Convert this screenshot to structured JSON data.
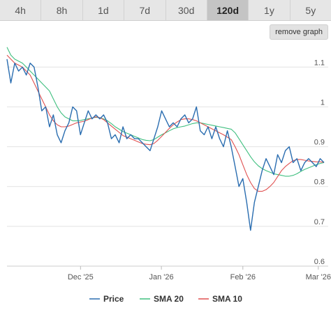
{
  "tabs": [
    {
      "label": "4h"
    },
    {
      "label": "8h"
    },
    {
      "label": "1d"
    },
    {
      "label": "7d"
    },
    {
      "label": "30d"
    },
    {
      "label": "120d",
      "active": true
    },
    {
      "label": "1y"
    },
    {
      "label": "5y"
    }
  ],
  "remove_graph_label": "remove graph",
  "chart_data": {
    "type": "line",
    "x_ticks": [
      "Dec '25",
      "Jan '26",
      "Feb '26",
      "Mar '26"
    ],
    "y_ticks": [
      0.6,
      0.7,
      0.8,
      0.9,
      1,
      1.1
    ],
    "ylim": [
      0.6,
      1.16
    ],
    "grid": "horizontal",
    "legend_position": "bottom",
    "series": [
      {
        "name": "Price",
        "color": "#2a6db0",
        "values": [
          1.12,
          1.06,
          1.11,
          1.09,
          1.1,
          1.08,
          1.11,
          1.1,
          1.05,
          0.99,
          1.0,
          0.95,
          0.98,
          0.93,
          0.91,
          0.94,
          0.96,
          1.0,
          0.99,
          0.93,
          0.96,
          0.99,
          0.97,
          0.98,
          0.97,
          0.98,
          0.96,
          0.92,
          0.93,
          0.91,
          0.95,
          0.92,
          0.93,
          0.92,
          0.92,
          0.91,
          0.9,
          0.89,
          0.92,
          0.95,
          0.99,
          0.97,
          0.95,
          0.96,
          0.95,
          0.97,
          0.98,
          0.96,
          0.97,
          1.0,
          0.94,
          0.93,
          0.95,
          0.92,
          0.95,
          0.92,
          0.9,
          0.94,
          0.9,
          0.85,
          0.8,
          0.82,
          0.76,
          0.69,
          0.76,
          0.8,
          0.84,
          0.87,
          0.85,
          0.83,
          0.88,
          0.86,
          0.89,
          0.9,
          0.86,
          0.87,
          0.84,
          0.86,
          0.87,
          0.86,
          0.85,
          0.87,
          0.86
        ]
      },
      {
        "name": "SMA 20",
        "color": "#3fbf7f",
        "values": [
          1.15,
          1.13,
          1.12,
          1.115,
          1.11,
          1.1,
          1.09,
          1.08,
          1.07,
          1.06,
          1.05,
          1.04,
          1.02,
          1.0,
          0.985,
          0.975,
          0.97,
          0.965,
          0.965,
          0.966,
          0.968,
          0.97,
          0.972,
          0.974,
          0.973,
          0.97,
          0.965,
          0.958,
          0.95,
          0.944,
          0.938,
          0.934,
          0.93,
          0.926,
          0.922,
          0.918,
          0.916,
          0.915,
          0.918,
          0.924,
          0.93,
          0.935,
          0.94,
          0.945,
          0.948,
          0.95,
          0.952,
          0.955,
          0.958,
          0.96,
          0.96,
          0.958,
          0.956,
          0.954,
          0.952,
          0.95,
          0.948,
          0.946,
          0.944,
          0.935,
          0.92,
          0.905,
          0.89,
          0.875,
          0.862,
          0.852,
          0.845,
          0.84,
          0.836,
          0.832,
          0.83,
          0.828,
          0.826,
          0.826,
          0.828,
          0.832,
          0.838,
          0.843,
          0.847,
          0.851,
          0.855,
          0.858,
          0.86
        ]
      },
      {
        "name": "SMA 10",
        "color": "#e05050",
        "values": [
          1.13,
          1.12,
          1.11,
          1.105,
          1.1,
          1.09,
          1.08,
          1.06,
          1.04,
          1.02,
          1.0,
          0.98,
          0.965,
          0.955,
          0.95,
          0.95,
          0.952,
          0.956,
          0.96,
          0.962,
          0.964,
          0.968,
          0.972,
          0.975,
          0.973,
          0.968,
          0.96,
          0.952,
          0.944,
          0.936,
          0.928,
          0.924,
          0.92,
          0.916,
          0.912,
          0.908,
          0.906,
          0.905,
          0.908,
          0.916,
          0.926,
          0.936,
          0.946,
          0.955,
          0.962,
          0.968,
          0.97,
          0.97,
          0.968,
          0.965,
          0.96,
          0.955,
          0.95,
          0.945,
          0.94,
          0.935,
          0.93,
          0.924,
          0.918,
          0.9,
          0.88,
          0.855,
          0.83,
          0.81,
          0.795,
          0.788,
          0.788,
          0.792,
          0.8,
          0.81,
          0.825,
          0.84,
          0.85,
          0.858,
          0.865,
          0.868,
          0.868,
          0.866,
          0.864,
          0.863,
          0.862,
          0.862,
          0.861
        ]
      }
    ]
  }
}
